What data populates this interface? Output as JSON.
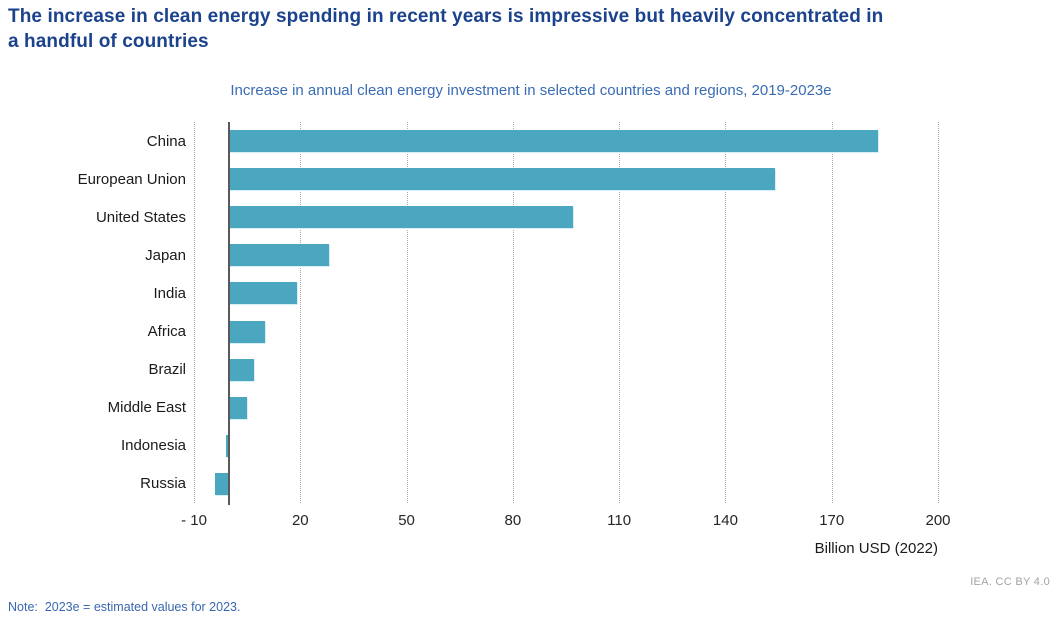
{
  "header": {
    "title_lines": {
      "0": "The increase in clean energy spending in recent years is impressive but heavily concentrated in",
      "1": "a handful of countries"
    }
  },
  "chart_data": {
    "type": "bar",
    "orientation": "horizontal",
    "title": "Increase in annual clean energy investment in selected countries and regions, 2019-2023e",
    "categories": [
      "China",
      "European Union",
      "United States",
      "Japan",
      "India",
      "Africa",
      "Brazil",
      "Middle East",
      "Indonesia",
      "Russia"
    ],
    "values": [
      183,
      154,
      97,
      28,
      19,
      10,
      7,
      5,
      -1,
      -4
    ],
    "xlabel": "Billion USD (2022)",
    "ylabel": "",
    "xlim": [
      -10,
      200
    ],
    "xticks": [
      -10,
      20,
      50,
      80,
      110,
      140,
      170,
      200
    ],
    "xtick_labels": [
      "- 10",
      "20",
      "50",
      "80",
      "110",
      "140",
      "170",
      "200"
    ],
    "legend": "none",
    "grid": "vertical dotted gridlines at each x tick",
    "bar_color": "#4BA7C0",
    "zero_axis_color": "#595959",
    "unit": "Billion USD (2022)"
  },
  "colors": {
    "title_navy": "#1b428c",
    "subtitle_blue": "#3a6cb5",
    "note_blue": "#3a66ae",
    "gridline_gray": "#a9a9a9",
    "credit_gray": "#a3a3a3"
  },
  "footer": {
    "note": "Note:  2023e = estimated values for 2023.",
    "credit": "IEA. CC BY 4.0"
  }
}
